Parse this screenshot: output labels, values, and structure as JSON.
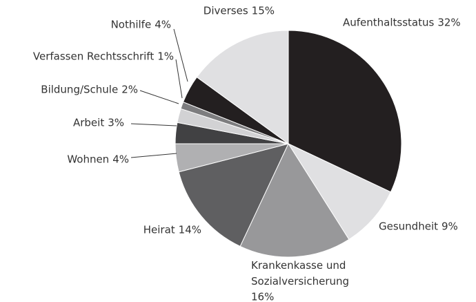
{
  "chart_data": {
    "type": "pie",
    "categories": [
      "Aufenthaltsstatus",
      "Gesundheit",
      "Krankenkasse und Sozialversicherung",
      "Heirat",
      "Wohnen",
      "Arbeit",
      "Bildung/Schule",
      "Verfassen Rechtsschrift",
      "Nothilfe",
      "Diverses"
    ],
    "values": [
      32,
      9,
      16,
      14,
      4,
      3,
      2,
      1,
      4,
      15
    ],
    "value_labels": [
      "32%",
      "9%",
      "16%",
      "14%",
      "4%",
      "3%",
      "2%",
      "1%",
      "4%",
      "15%"
    ],
    "colors": [
      "#231f20",
      "#e0e0e2",
      "#98989a",
      "#5f5f61",
      "#b0b0b2",
      "#414143",
      "#d2d2d4",
      "#7d7d7f",
      "#231f20",
      "#e0e0e2"
    ]
  }
}
